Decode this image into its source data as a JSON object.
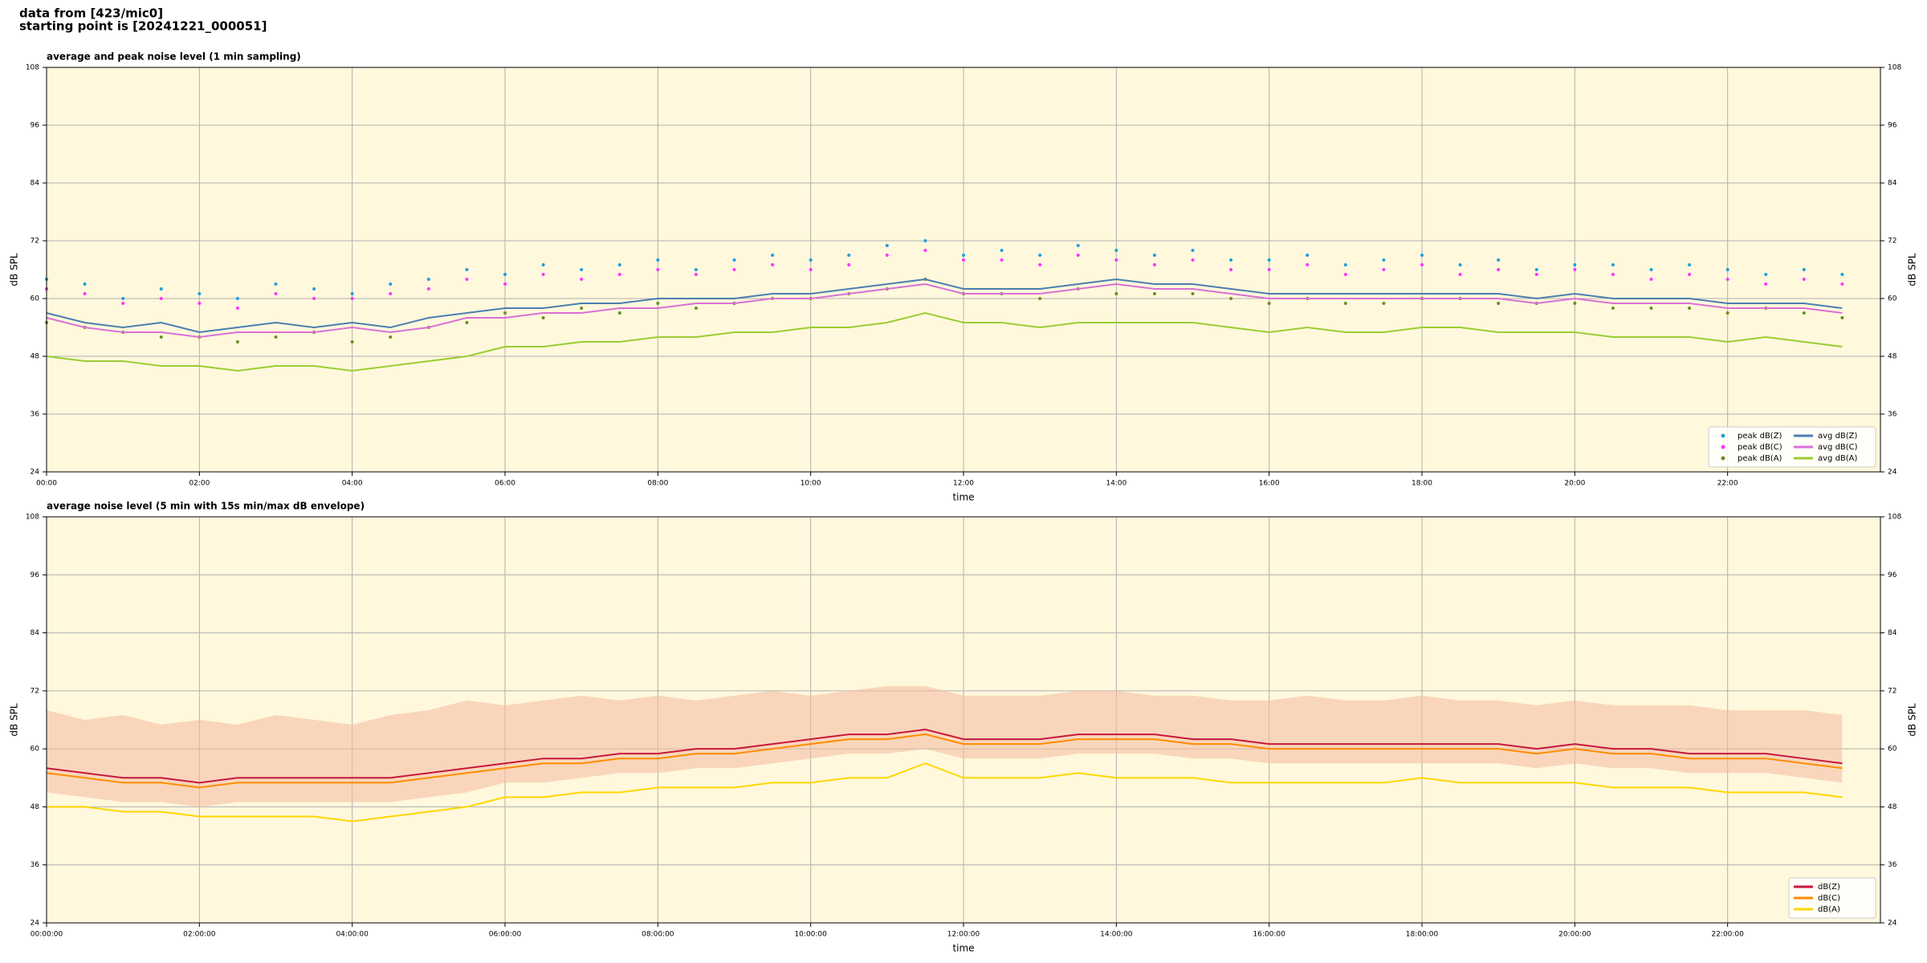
{
  "header": {
    "line1": "data from [423/mic0]",
    "line2": "starting point is [20241221_000051]"
  },
  "chart_data": [
    {
      "type": "line",
      "title": "average and peak noise level (1 min sampling)",
      "xlabel": "time",
      "ylabel": "dB SPL",
      "xlim": [
        0,
        1440
      ],
      "ylim": [
        24,
        108
      ],
      "yticks": [
        24,
        36,
        48,
        60,
        72,
        84,
        96,
        108
      ],
      "xticks": [
        {
          "value": 0,
          "label": "00:00"
        },
        {
          "value": 120,
          "label": "02:00"
        },
        {
          "value": 240,
          "label": "04:00"
        },
        {
          "value": 360,
          "label": "06:00"
        },
        {
          "value": 480,
          "label": "08:00"
        },
        {
          "value": 600,
          "label": "10:00"
        },
        {
          "value": 720,
          "label": "12:00"
        },
        {
          "value": 840,
          "label": "14:00"
        },
        {
          "value": 960,
          "label": "16:00"
        },
        {
          "value": 1080,
          "label": "18:00"
        },
        {
          "value": 1200,
          "label": "20:00"
        },
        {
          "value": 1320,
          "label": "22:00"
        }
      ],
      "grid": true,
      "background": "#fff8dc",
      "legend": "lower right",
      "legend_columns": 2,
      "x": [
        0,
        30,
        60,
        90,
        120,
        150,
        180,
        210,
        240,
        270,
        300,
        330,
        360,
        390,
        420,
        450,
        480,
        510,
        540,
        570,
        600,
        630,
        660,
        690,
        720,
        750,
        780,
        810,
        840,
        870,
        900,
        930,
        960,
        990,
        1020,
        1050,
        1080,
        1110,
        1140,
        1170,
        1200,
        1230,
        1260,
        1290,
        1320,
        1350,
        1380,
        1410
      ],
      "series": [
        {
          "name": "peak dB(Z)",
          "color": "#1f9fe0",
          "marker": true,
          "values": [
            64,
            63,
            60,
            62,
            61,
            60,
            63,
            62,
            61,
            63,
            64,
            66,
            65,
            67,
            66,
            67,
            68,
            66,
            68,
            69,
            68,
            69,
            71,
            72,
            69,
            70,
            69,
            71,
            70,
            69,
            70,
            68,
            68,
            69,
            67,
            68,
            69,
            67,
            68,
            66,
            67,
            67,
            66,
            67,
            66,
            65,
            66,
            65
          ]
        },
        {
          "name": "peak dB(C)",
          "color": "#ff33ff",
          "marker": true,
          "values": [
            62,
            61,
            59,
            60,
            59,
            58,
            61,
            60,
            60,
            61,
            62,
            64,
            63,
            65,
            64,
            65,
            66,
            65,
            66,
            67,
            66,
            67,
            69,
            70,
            68,
            68,
            67,
            69,
            68,
            67,
            68,
            66,
            66,
            67,
            65,
            66,
            67,
            65,
            66,
            65,
            66,
            65,
            64,
            65,
            64,
            63,
            64,
            63
          ]
        },
        {
          "name": "peak dB(A)",
          "color": "#6b8e23",
          "marker": true,
          "values": [
            55,
            54,
            53,
            52,
            52,
            51,
            52,
            53,
            51,
            52,
            54,
            55,
            57,
            56,
            58,
            57,
            59,
            58,
            59,
            60,
            60,
            61,
            62,
            64,
            61,
            61,
            60,
            62,
            61,
            61,
            61,
            60,
            59,
            60,
            59,
            59,
            60,
            60,
            59,
            59,
            59,
            58,
            58,
            58,
            57,
            58,
            57,
            56
          ]
        },
        {
          "name": "avg dB(Z)",
          "color": "#4a7fb0",
          "values": [
            57,
            55,
            54,
            55,
            53,
            54,
            55,
            54,
            55,
            54,
            56,
            57,
            58,
            58,
            59,
            59,
            60,
            60,
            60,
            61,
            61,
            62,
            63,
            64,
            62,
            62,
            62,
            63,
            64,
            63,
            63,
            62,
            61,
            61,
            61,
            61,
            61,
            61,
            61,
            60,
            61,
            60,
            60,
            60,
            59,
            59,
            59,
            58
          ]
        },
        {
          "name": "avg dB(C)",
          "color": "#da70d6",
          "values": [
            56,
            54,
            53,
            53,
            52,
            53,
            53,
            53,
            54,
            53,
            54,
            56,
            56,
            57,
            57,
            58,
            58,
            59,
            59,
            60,
            60,
            61,
            62,
            63,
            61,
            61,
            61,
            62,
            63,
            62,
            62,
            61,
            60,
            60,
            60,
            60,
            60,
            60,
            60,
            59,
            60,
            59,
            59,
            59,
            58,
            58,
            58,
            57
          ]
        },
        {
          "name": "avg dB(A)",
          "color": "#9acd32",
          "values": [
            48,
            47,
            47,
            46,
            46,
            45,
            46,
            46,
            45,
            46,
            47,
            48,
            50,
            50,
            51,
            51,
            52,
            52,
            53,
            53,
            54,
            54,
            55,
            57,
            55,
            55,
            54,
            55,
            55,
            55,
            55,
            54,
            53,
            54,
            53,
            53,
            54,
            54,
            53,
            53,
            53,
            52,
            52,
            52,
            51,
            52,
            51,
            50
          ]
        }
      ]
    },
    {
      "type": "line",
      "title": "average noise level (5 min with 15s min/max dB envelope)",
      "xlabel": "time",
      "ylabel": "dB SPL",
      "xlim": [
        0,
        1440
      ],
      "ylim": [
        24,
        108
      ],
      "yticks": [
        24,
        36,
        48,
        60,
        72,
        84,
        96,
        108
      ],
      "xticks": [
        {
          "value": 0,
          "label": "00:00:00"
        },
        {
          "value": 120,
          "label": "02:00:00"
        },
        {
          "value": 240,
          "label": "04:00:00"
        },
        {
          "value": 360,
          "label": "06:00:00"
        },
        {
          "value": 480,
          "label": "08:00:00"
        },
        {
          "value": 600,
          "label": "10:00:00"
        },
        {
          "value": 720,
          "label": "12:00:00"
        },
        {
          "value": 840,
          "label": "14:00:00"
        },
        {
          "value": 960,
          "label": "16:00:00"
        },
        {
          "value": 1080,
          "label": "18:00:00"
        },
        {
          "value": 1200,
          "label": "20:00:00"
        },
        {
          "value": 1320,
          "label": "22:00:00"
        }
      ],
      "grid": true,
      "background": "#fff8dc",
      "legend": "lower right",
      "legend_columns": 1,
      "x": [
        0,
        30,
        60,
        90,
        120,
        150,
        180,
        210,
        240,
        270,
        300,
        330,
        360,
        390,
        420,
        450,
        480,
        510,
        540,
        570,
        600,
        630,
        660,
        690,
        720,
        750,
        780,
        810,
        840,
        870,
        900,
        930,
        960,
        990,
        1020,
        1050,
        1080,
        1110,
        1140,
        1170,
        1200,
        1230,
        1260,
        1290,
        1320,
        1350,
        1380,
        1410
      ],
      "envelope": {
        "color": "#f4b9a0",
        "lower": [
          51,
          50,
          49,
          49,
          48,
          49,
          49,
          49,
          49,
          49,
          50,
          51,
          53,
          53,
          54,
          55,
          55,
          56,
          56,
          57,
          58,
          59,
          59,
          60,
          58,
          58,
          58,
          59,
          59,
          59,
          58,
          58,
          57,
          57,
          57,
          57,
          57,
          57,
          57,
          56,
          57,
          56,
          56,
          55,
          55,
          55,
          54,
          53
        ],
        "upper": [
          68,
          66,
          67,
          65,
          66,
          65,
          67,
          66,
          65,
          67,
          68,
          70,
          69,
          70,
          71,
          70,
          71,
          70,
          71,
          72,
          71,
          72,
          73,
          73,
          71,
          71,
          71,
          72,
          72,
          71,
          71,
          70,
          70,
          71,
          70,
          70,
          71,
          70,
          70,
          69,
          70,
          69,
          69,
          69,
          68,
          68,
          68,
          67
        ]
      },
      "series": [
        {
          "name": "dB(Z)",
          "color": "#c8173c",
          "values": [
            56,
            55,
            54,
            54,
            53,
            54,
            54,
            54,
            54,
            54,
            55,
            56,
            57,
            58,
            58,
            59,
            59,
            60,
            60,
            61,
            62,
            63,
            63,
            64,
            62,
            62,
            62,
            63,
            63,
            63,
            62,
            62,
            61,
            61,
            61,
            61,
            61,
            61,
            61,
            60,
            61,
            60,
            60,
            59,
            59,
            59,
            58,
            57
          ]
        },
        {
          "name": "dB(C)",
          "color": "#ff8c00",
          "values": [
            55,
            54,
            53,
            53,
            52,
            53,
            53,
            53,
            53,
            53,
            54,
            55,
            56,
            57,
            57,
            58,
            58,
            59,
            59,
            60,
            61,
            62,
            62,
            63,
            61,
            61,
            61,
            62,
            62,
            62,
            61,
            61,
            60,
            60,
            60,
            60,
            60,
            60,
            60,
            59,
            60,
            59,
            59,
            58,
            58,
            58,
            57,
            56
          ]
        },
        {
          "name": "dB(A)",
          "color": "#ffd700",
          "values": [
            48,
            48,
            47,
            47,
            46,
            46,
            46,
            46,
            45,
            46,
            47,
            48,
            50,
            50,
            51,
            51,
            52,
            52,
            52,
            53,
            53,
            54,
            54,
            57,
            54,
            54,
            54,
            55,
            54,
            54,
            54,
            53,
            53,
            53,
            53,
            53,
            54,
            53,
            53,
            53,
            53,
            52,
            52,
            52,
            51,
            51,
            51,
            50
          ]
        }
      ]
    }
  ]
}
